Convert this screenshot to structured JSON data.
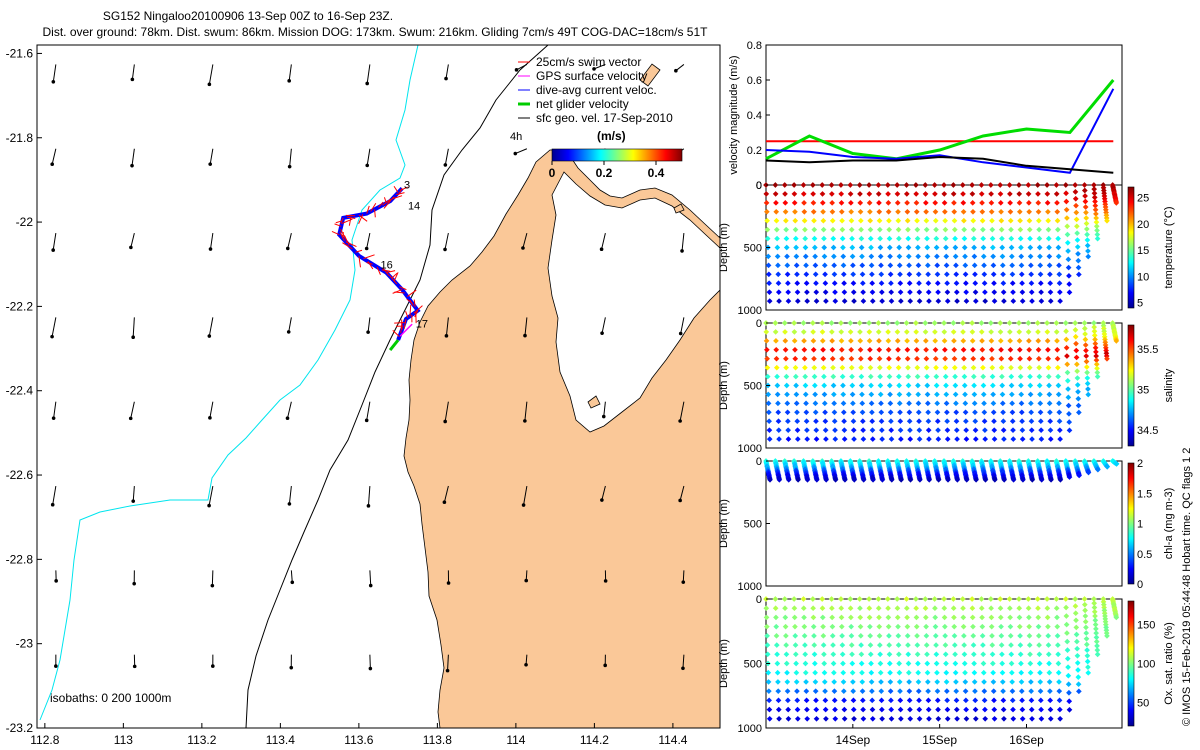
{
  "map": {
    "title_line1": "SG152 Ningaloo20100906 13-Sep 00Z to 16-Sep 23Z.",
    "title_line2": "Dist. over ground: 78km. Dist. swum: 86km. Mission DOG: 173km. Swum: 216km. Gliding 7cm/s 49T COG-DAC=18cm/s 51T",
    "isobath_note": "isobaths: 0   200  1000m",
    "x_ticks": [
      "112.8",
      "113",
      "113.2",
      "113.4",
      "113.6",
      "113.8",
      "114",
      "114.2",
      "114.4"
    ],
    "y_ticks": [
      "-21.6",
      "-21.8",
      "-22",
      "-22.2",
      "-22.4",
      "-22.6",
      "-22.8",
      "-23",
      "-23.2"
    ],
    "xlim": [
      112.78,
      114.52
    ],
    "ylim": [
      -23.2,
      -21.58
    ],
    "legend": [
      {
        "label": "25cm/s swim vector",
        "color": "#ff0000"
      },
      {
        "label": "GPS surface velocity",
        "color": "#ff00ff"
      },
      {
        "label": "dive-avg current veloc.",
        "color": "#0000ff"
      },
      {
        "label": "net glider velocity",
        "color": "#00cc00"
      },
      {
        "label": "sfc geo. vel. 17-Sep-2010",
        "color": "#000000"
      }
    ],
    "colorbar": {
      "scale_label": "4h",
      "unit_label": "(m/s)",
      "ticks": [
        "0",
        "0.2",
        "0.4"
      ],
      "range": [
        0,
        0.5
      ]
    },
    "day_labels": [
      {
        "text": "3",
        "lon": 113.715,
        "lat": -21.92
      },
      {
        "text": "14",
        "lon": 113.725,
        "lat": -21.97
      },
      {
        "text": "16",
        "lon": 113.655,
        "lat": -22.11
      },
      {
        "text": "17",
        "lon": 113.745,
        "lat": -22.25
      }
    ],
    "colors": {
      "land": "#fac898",
      "isobath_200": "#000000",
      "isobath_1000": "#00e5ee"
    }
  },
  "chart_data": [
    {
      "type": "line",
      "title": "velocity magnitude",
      "ylabel": "velocity magnitude (m/s)",
      "ylim": [
        0,
        0.8
      ],
      "yticks": [
        "0",
        "0.2",
        "0.4",
        "0.6",
        "0.8"
      ],
      "x_days": [
        13.0,
        13.5,
        14.0,
        14.5,
        15.0,
        15.5,
        16.0,
        16.5,
        17.0
      ],
      "series": [
        {
          "name": "swim speed",
          "color": "#ff0000",
          "values": [
            0.25,
            0.25,
            0.25,
            0.25,
            0.25,
            0.25,
            0.25,
            0.25,
            0.25
          ]
        },
        {
          "name": "net glider velocity",
          "color": "#00dd00",
          "values": [
            0.15,
            0.28,
            0.18,
            0.15,
            0.2,
            0.28,
            0.32,
            0.3,
            0.6
          ]
        },
        {
          "name": "dive-avg current",
          "color": "#0000ff",
          "values": [
            0.2,
            0.19,
            0.16,
            0.15,
            0.17,
            0.13,
            0.1,
            0.07,
            0.55
          ]
        },
        {
          "name": "surface geostrophic",
          "color": "#000000",
          "values": [
            0.14,
            0.13,
            0.14,
            0.14,
            0.16,
            0.15,
            0.11,
            0.09,
            0.07
          ]
        }
      ]
    },
    {
      "type": "scatter",
      "title": "temperature",
      "ylabel": "Depth (m)",
      "clabel": "temperature (°C)",
      "crange": [
        4,
        27
      ],
      "cticks": [
        "5",
        "10",
        "15",
        "20",
        "25"
      ],
      "profile": {
        "depths": [
          0,
          100,
          200,
          300,
          400,
          500,
          700,
          900,
          1000
        ],
        "values": [
          26,
          25,
          22,
          18,
          14,
          11,
          8,
          6,
          5
        ]
      },
      "yticks": [
        "0",
        "500",
        "1000"
      ]
    },
    {
      "type": "scatter",
      "title": "salinity",
      "ylabel": "Depth (m)",
      "clabel": "salinity",
      "crange": [
        34.3,
        35.8
      ],
      "cticks": [
        "34.5",
        "35",
        "35.5"
      ],
      "profile": {
        "depths": [
          0,
          100,
          180,
          250,
          320,
          400,
          500,
          700,
          1000
        ],
        "values": [
          35.1,
          35.2,
          35.5,
          35.7,
          35.4,
          35.0,
          34.8,
          34.6,
          34.5
        ]
      },
      "yticks": [
        "0",
        "500",
        "1000"
      ]
    },
    {
      "type": "scatter",
      "title": "chl-a",
      "ylabel": "Depth (m)",
      "clabel": "chl-a (mg m-3)",
      "crange": [
        0,
        2
      ],
      "cticks": [
        "0",
        "0.5",
        "1",
        "1.5",
        "2"
      ],
      "profile": {
        "depths": [
          0,
          50,
          100,
          150
        ],
        "values": [
          0.8,
          0.6,
          0.3,
          0.1
        ]
      },
      "yticks": [
        "0",
        "500",
        "1000"
      ]
    },
    {
      "type": "scatter",
      "title": "oxygen",
      "ylabel": "Depth (m)",
      "clabel": "Ox. sat. ratio (%)",
      "crange": [
        20,
        180
      ],
      "cticks": [
        "50",
        "100",
        "150"
      ],
      "profile": {
        "depths": [
          0,
          200,
          400,
          600,
          800,
          1000
        ],
        "values": [
          110,
          100,
          90,
          80,
          40,
          30
        ]
      },
      "yticks": [
        "0",
        "500",
        "1000"
      ]
    }
  ],
  "time_axis": {
    "labels": [
      "14Sep",
      "15Sep",
      "16Sep"
    ],
    "range_days": [
      13.0,
      17.1
    ]
  },
  "footer": {
    "credit": "© IMOS 15-Feb-2019 05:44:48 Hobart time. QC flags 1  2"
  }
}
